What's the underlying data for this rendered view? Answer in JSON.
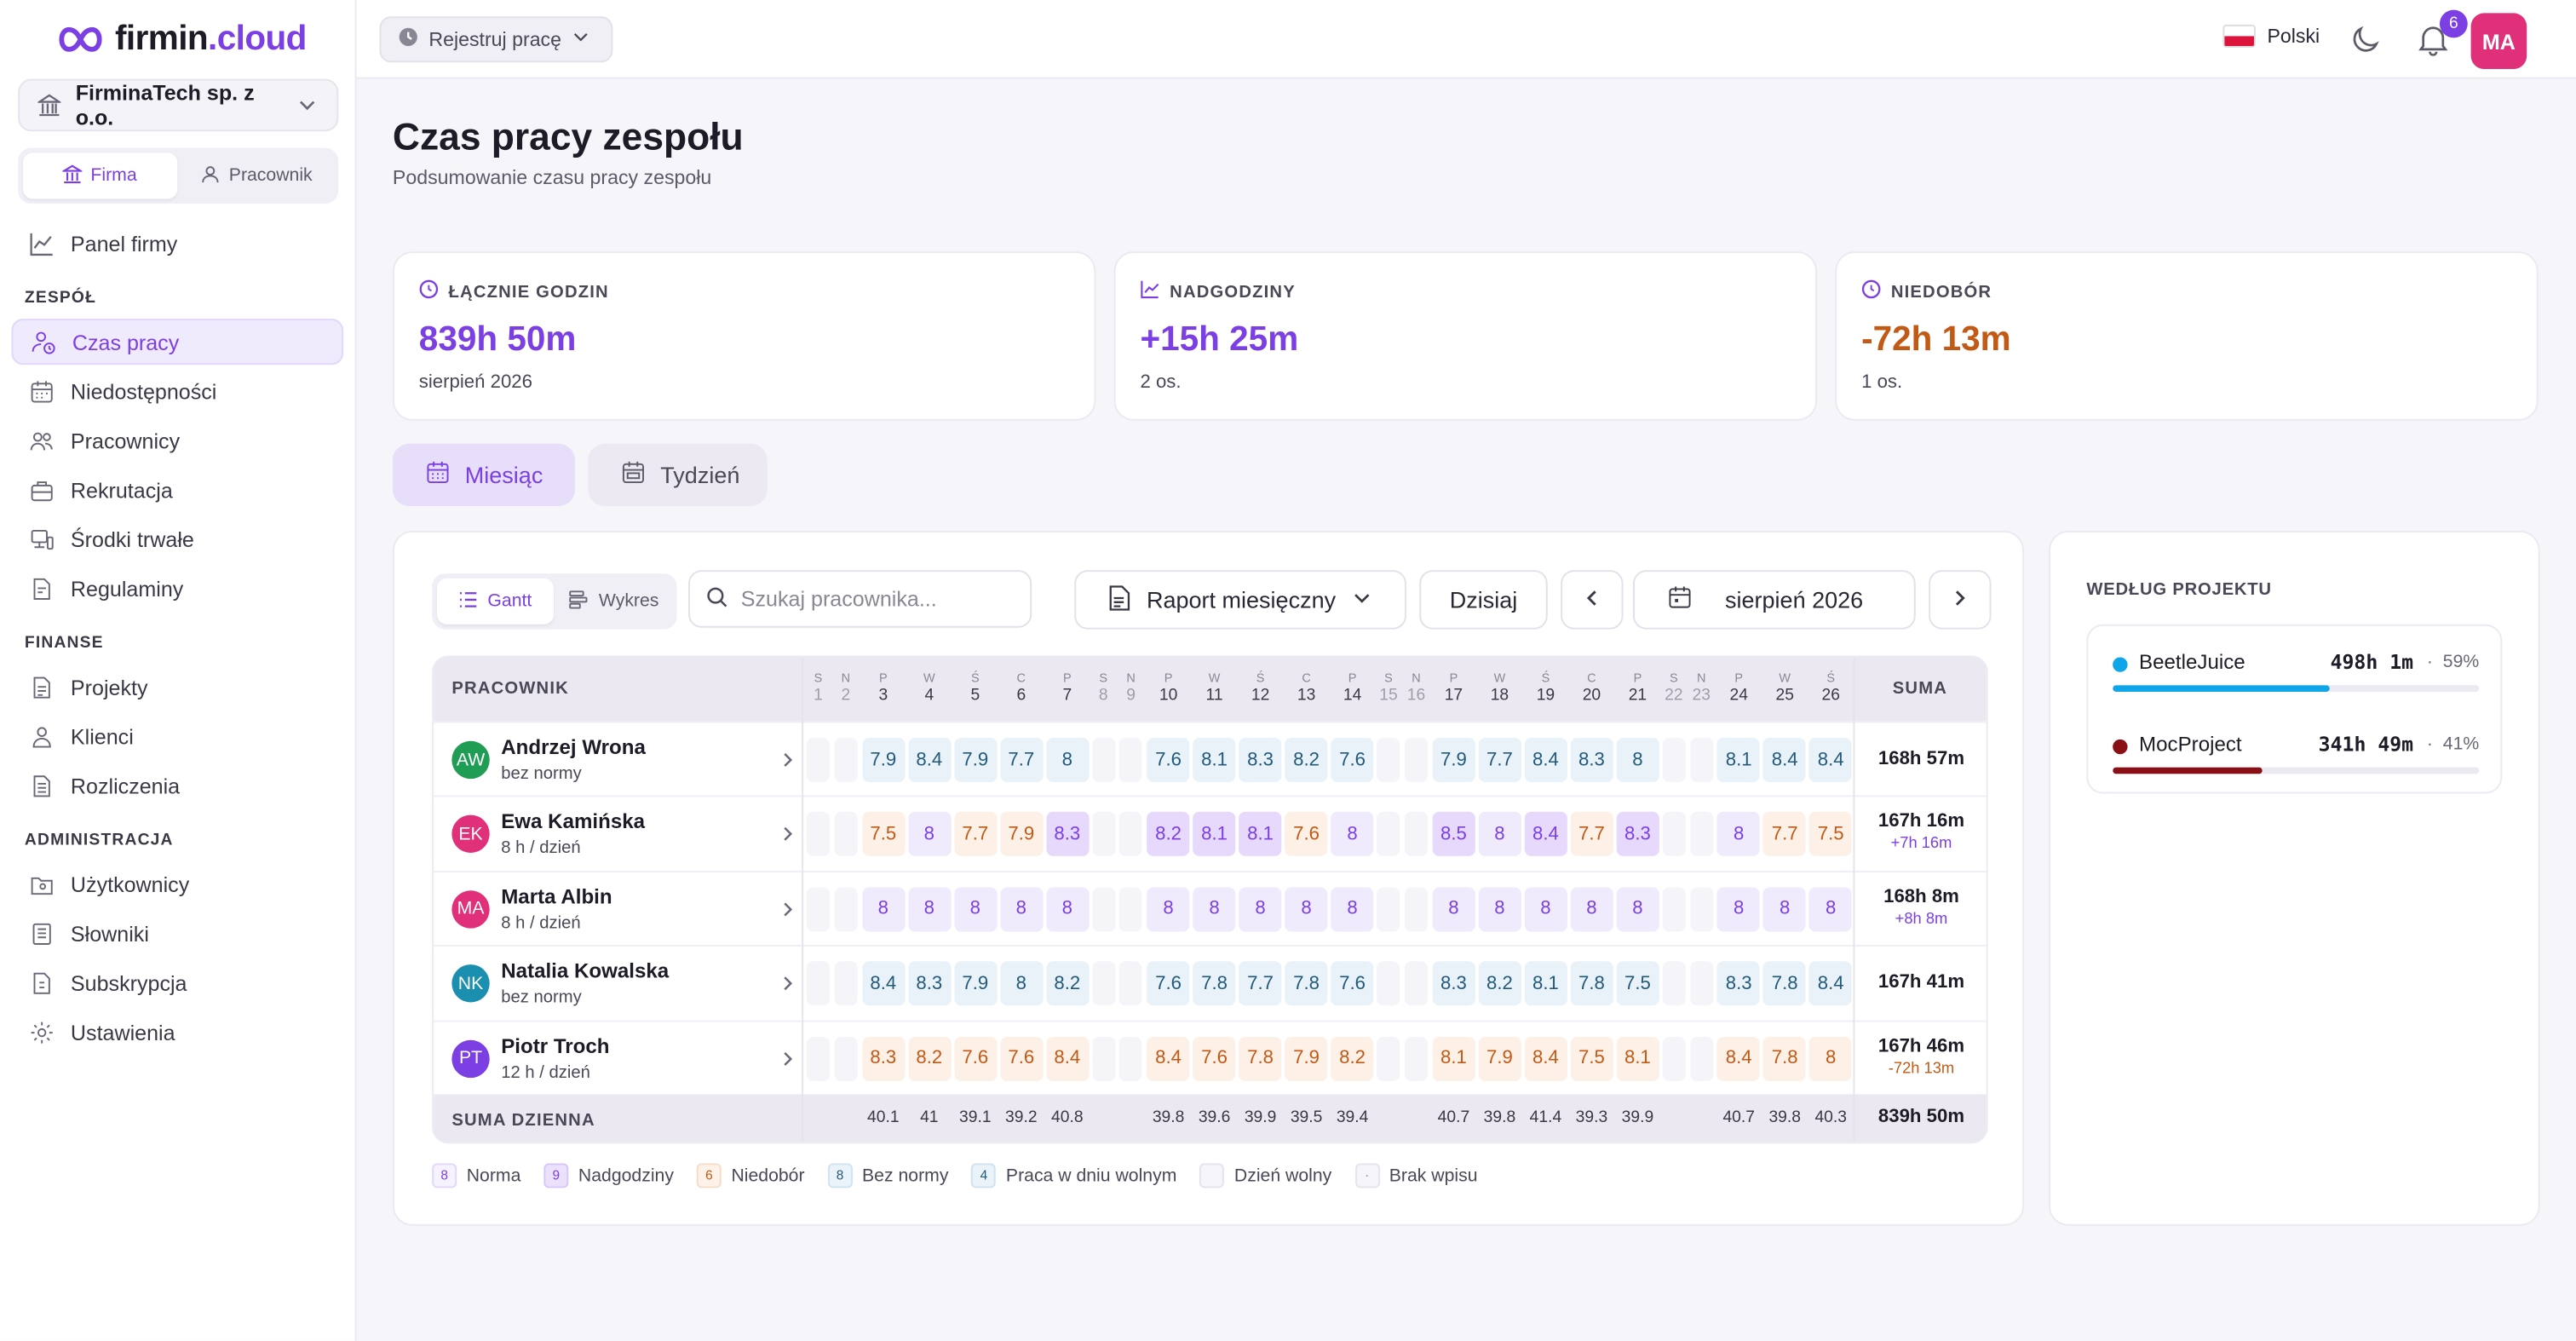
{
  "brand": {
    "name_main": "firmin",
    "name_dot": ".cloud",
    "accent": "#7b3fe4"
  },
  "company": {
    "name": "FirminaTech sp. z o.o."
  },
  "role_switch": {
    "firma": "Firma",
    "pracownik": "Pracownik"
  },
  "nav": {
    "panel": "Panel firmy",
    "section_team": "ZESPÓŁ",
    "czas_pracy": "Czas pracy",
    "niedostepnosci": "Niedostępności",
    "pracownicy": "Pracownicy",
    "rekrutacja": "Rekrutacja",
    "srodki": "Środki trwałe",
    "regulaminy": "Regulaminy",
    "section_finance": "FINANSE",
    "projekty": "Projekty",
    "klienci": "Klienci",
    "rozliczenia": "Rozliczenia",
    "section_admin": "ADMINISTRACJA",
    "uzytkownicy": "Użytkownicy",
    "slowniki": "Słowniki",
    "subskrypcja": "Subskrypcja",
    "ustawienia": "Ustawienia"
  },
  "topbar": {
    "register_label": "Rejestruj pracę",
    "language": "Polski",
    "notifications": "6",
    "user_initials": "MA"
  },
  "page": {
    "title": "Czas pracy zespołu",
    "subtitle": "Podsumowanie czasu pracy zespołu"
  },
  "stats": [
    {
      "label": "ŁĄCZNIE GODZIN",
      "value": "839h 50m",
      "sub": "sierpień 2026",
      "color": "#7b3fe4"
    },
    {
      "label": "NADGODZINY",
      "value": "+15h 25m",
      "sub": "2 os.",
      "color": "#7b3fe4"
    },
    {
      "label": "NIEDOBÓR",
      "value": "-72h 13m",
      "sub": "1 os.",
      "color": "#c25a16"
    }
  ],
  "view_tabs": {
    "month": "Miesiąc",
    "week": "Tydzień"
  },
  "toolbar": {
    "gantt": "Gantt",
    "chart": "Wykres",
    "search_placeholder": "Szukaj pracownika...",
    "report": "Raport miesięczny",
    "today": "Dzisiaj",
    "period": "sierpień 2026"
  },
  "grid": {
    "col_employee": "PRACOWNIK",
    "col_sum": "SUMA",
    "foot_label": "SUMA DZIENNA",
    "foot_total": "839h 50m",
    "days": [
      {
        "wd": "S",
        "n": "1",
        "we": true
      },
      {
        "wd": "N",
        "n": "2",
        "we": true
      },
      {
        "wd": "P",
        "n": "3"
      },
      {
        "wd": "W",
        "n": "4"
      },
      {
        "wd": "Ś",
        "n": "5"
      },
      {
        "wd": "C",
        "n": "6"
      },
      {
        "wd": "P",
        "n": "7"
      },
      {
        "wd": "S",
        "n": "8",
        "we": true
      },
      {
        "wd": "N",
        "n": "9",
        "we": true
      },
      {
        "wd": "P",
        "n": "10"
      },
      {
        "wd": "W",
        "n": "11"
      },
      {
        "wd": "Ś",
        "n": "12"
      },
      {
        "wd": "C",
        "n": "13"
      },
      {
        "wd": "P",
        "n": "14"
      },
      {
        "wd": "S",
        "n": "15",
        "we": true
      },
      {
        "wd": "N",
        "n": "16",
        "we": true
      },
      {
        "wd": "P",
        "n": "17"
      },
      {
        "wd": "W",
        "n": "18"
      },
      {
        "wd": "Ś",
        "n": "19"
      },
      {
        "wd": "C",
        "n": "20"
      },
      {
        "wd": "P",
        "n": "21"
      },
      {
        "wd": "S",
        "n": "22",
        "we": true
      },
      {
        "wd": "N",
        "n": "23",
        "we": true
      },
      {
        "wd": "P",
        "n": "24"
      },
      {
        "wd": "W",
        "n": "25"
      },
      {
        "wd": "Ś",
        "n": "26"
      }
    ],
    "employees": [
      {
        "initials": "AW",
        "name": "Andrzej Wrona",
        "norm": "bez normy",
        "color": "#1f9d55",
        "sum": "168h 57m",
        "delta": "",
        "delta_color": "",
        "kind": "bez",
        "values": [
          "7.9",
          "8.4",
          "7.9",
          "7.7",
          "8",
          "7.6",
          "8.1",
          "8.3",
          "8.2",
          "7.6",
          "7.9",
          "7.7",
          "8.4",
          "8.3",
          "8",
          "8.1",
          "8.4",
          "8.4"
        ]
      },
      {
        "initials": "EK",
        "name": "Ewa Kamińska",
        "norm": "8 h / dzień",
        "color": "#e0307a",
        "sum": "167h 16m",
        "delta": "+7h 16m",
        "delta_color": "#7b3fe4",
        "kind": "mixed",
        "values": [
          "7.5",
          "8",
          "7.7",
          "7.9",
          "8.3",
          "8.2",
          "8.1",
          "8.1",
          "7.6",
          "8",
          "8.5",
          "8",
          "8.4",
          "7.7",
          "8.3",
          "8",
          "7.7",
          "7.5"
        ]
      },
      {
        "initials": "MA",
        "name": "Marta Albin",
        "norm": "8 h / dzień",
        "color": "#e0307a",
        "sum": "168h 8m",
        "delta": "+8h 8m",
        "delta_color": "#7b3fe4",
        "kind": "norma",
        "values": [
          "8",
          "8",
          "8",
          "8",
          "8",
          "8",
          "8",
          "8",
          "8",
          "8",
          "8",
          "8",
          "8",
          "8",
          "8",
          "8",
          "8",
          "8"
        ]
      },
      {
        "initials": "NK",
        "name": "Natalia Kowalska",
        "norm": "bez normy",
        "color": "#1a8fb0",
        "sum": "167h 41m",
        "delta": "",
        "delta_color": "",
        "kind": "bez",
        "values": [
          "8.4",
          "8.3",
          "7.9",
          "8",
          "8.2",
          "7.6",
          "7.8",
          "7.7",
          "7.8",
          "7.6",
          "8.3",
          "8.2",
          "8.1",
          "7.8",
          "7.5",
          "8.3",
          "7.8",
          "8.4"
        ]
      },
      {
        "initials": "PT",
        "name": "Piotr Troch",
        "norm": "12 h / dzień",
        "color": "#7b3fe4",
        "sum": "167h 46m",
        "delta": "-72h 13m",
        "delta_color": "#c25a16",
        "kind": "nied",
        "values": [
          "8.3",
          "8.2",
          "7.6",
          "7.6",
          "8.4",
          "8.4",
          "7.6",
          "7.8",
          "7.9",
          "8.2",
          "8.1",
          "7.9",
          "8.4",
          "7.5",
          "8.1",
          "8.4",
          "7.8",
          "8"
        ]
      }
    ],
    "daily_sums": [
      "40.1",
      "41",
      "39.1",
      "39.2",
      "40.8",
      "39.8",
      "39.6",
      "39.9",
      "39.5",
      "39.4",
      "40.7",
      "39.8",
      "41.4",
      "39.3",
      "39.9",
      "40.7",
      "39.8",
      "40.3"
    ]
  },
  "legend": [
    {
      "sym": "8",
      "label": "Norma",
      "kind": "norma"
    },
    {
      "sym": "9",
      "label": "Nadgodziny",
      "kind": "nad"
    },
    {
      "sym": "6",
      "label": "Niedobór",
      "kind": "nied"
    },
    {
      "sym": "8",
      "label": "Bez normy",
      "kind": "bez"
    },
    {
      "sym": "4",
      "label": "Praca w dniu wolnym",
      "kind": "bez"
    },
    {
      "sym": "",
      "label": "Dzień wolny",
      "kind": "wolny"
    },
    {
      "sym": "·",
      "label": "Brak wpisu",
      "kind": "wolny"
    }
  ],
  "projects": {
    "title": "WEDŁUG PROJEKTU",
    "items": [
      {
        "name": "BeetleJuice",
        "hours": "498h 1m",
        "sep": "·",
        "pct_label": "59%",
        "share": 0.59,
        "color": "#0ea5e9"
      },
      {
        "name": "MocProject",
        "hours": "341h 49m",
        "sep": "·",
        "pct_label": "41%",
        "share": 0.41,
        "color": "#8b0f16"
      }
    ]
  }
}
